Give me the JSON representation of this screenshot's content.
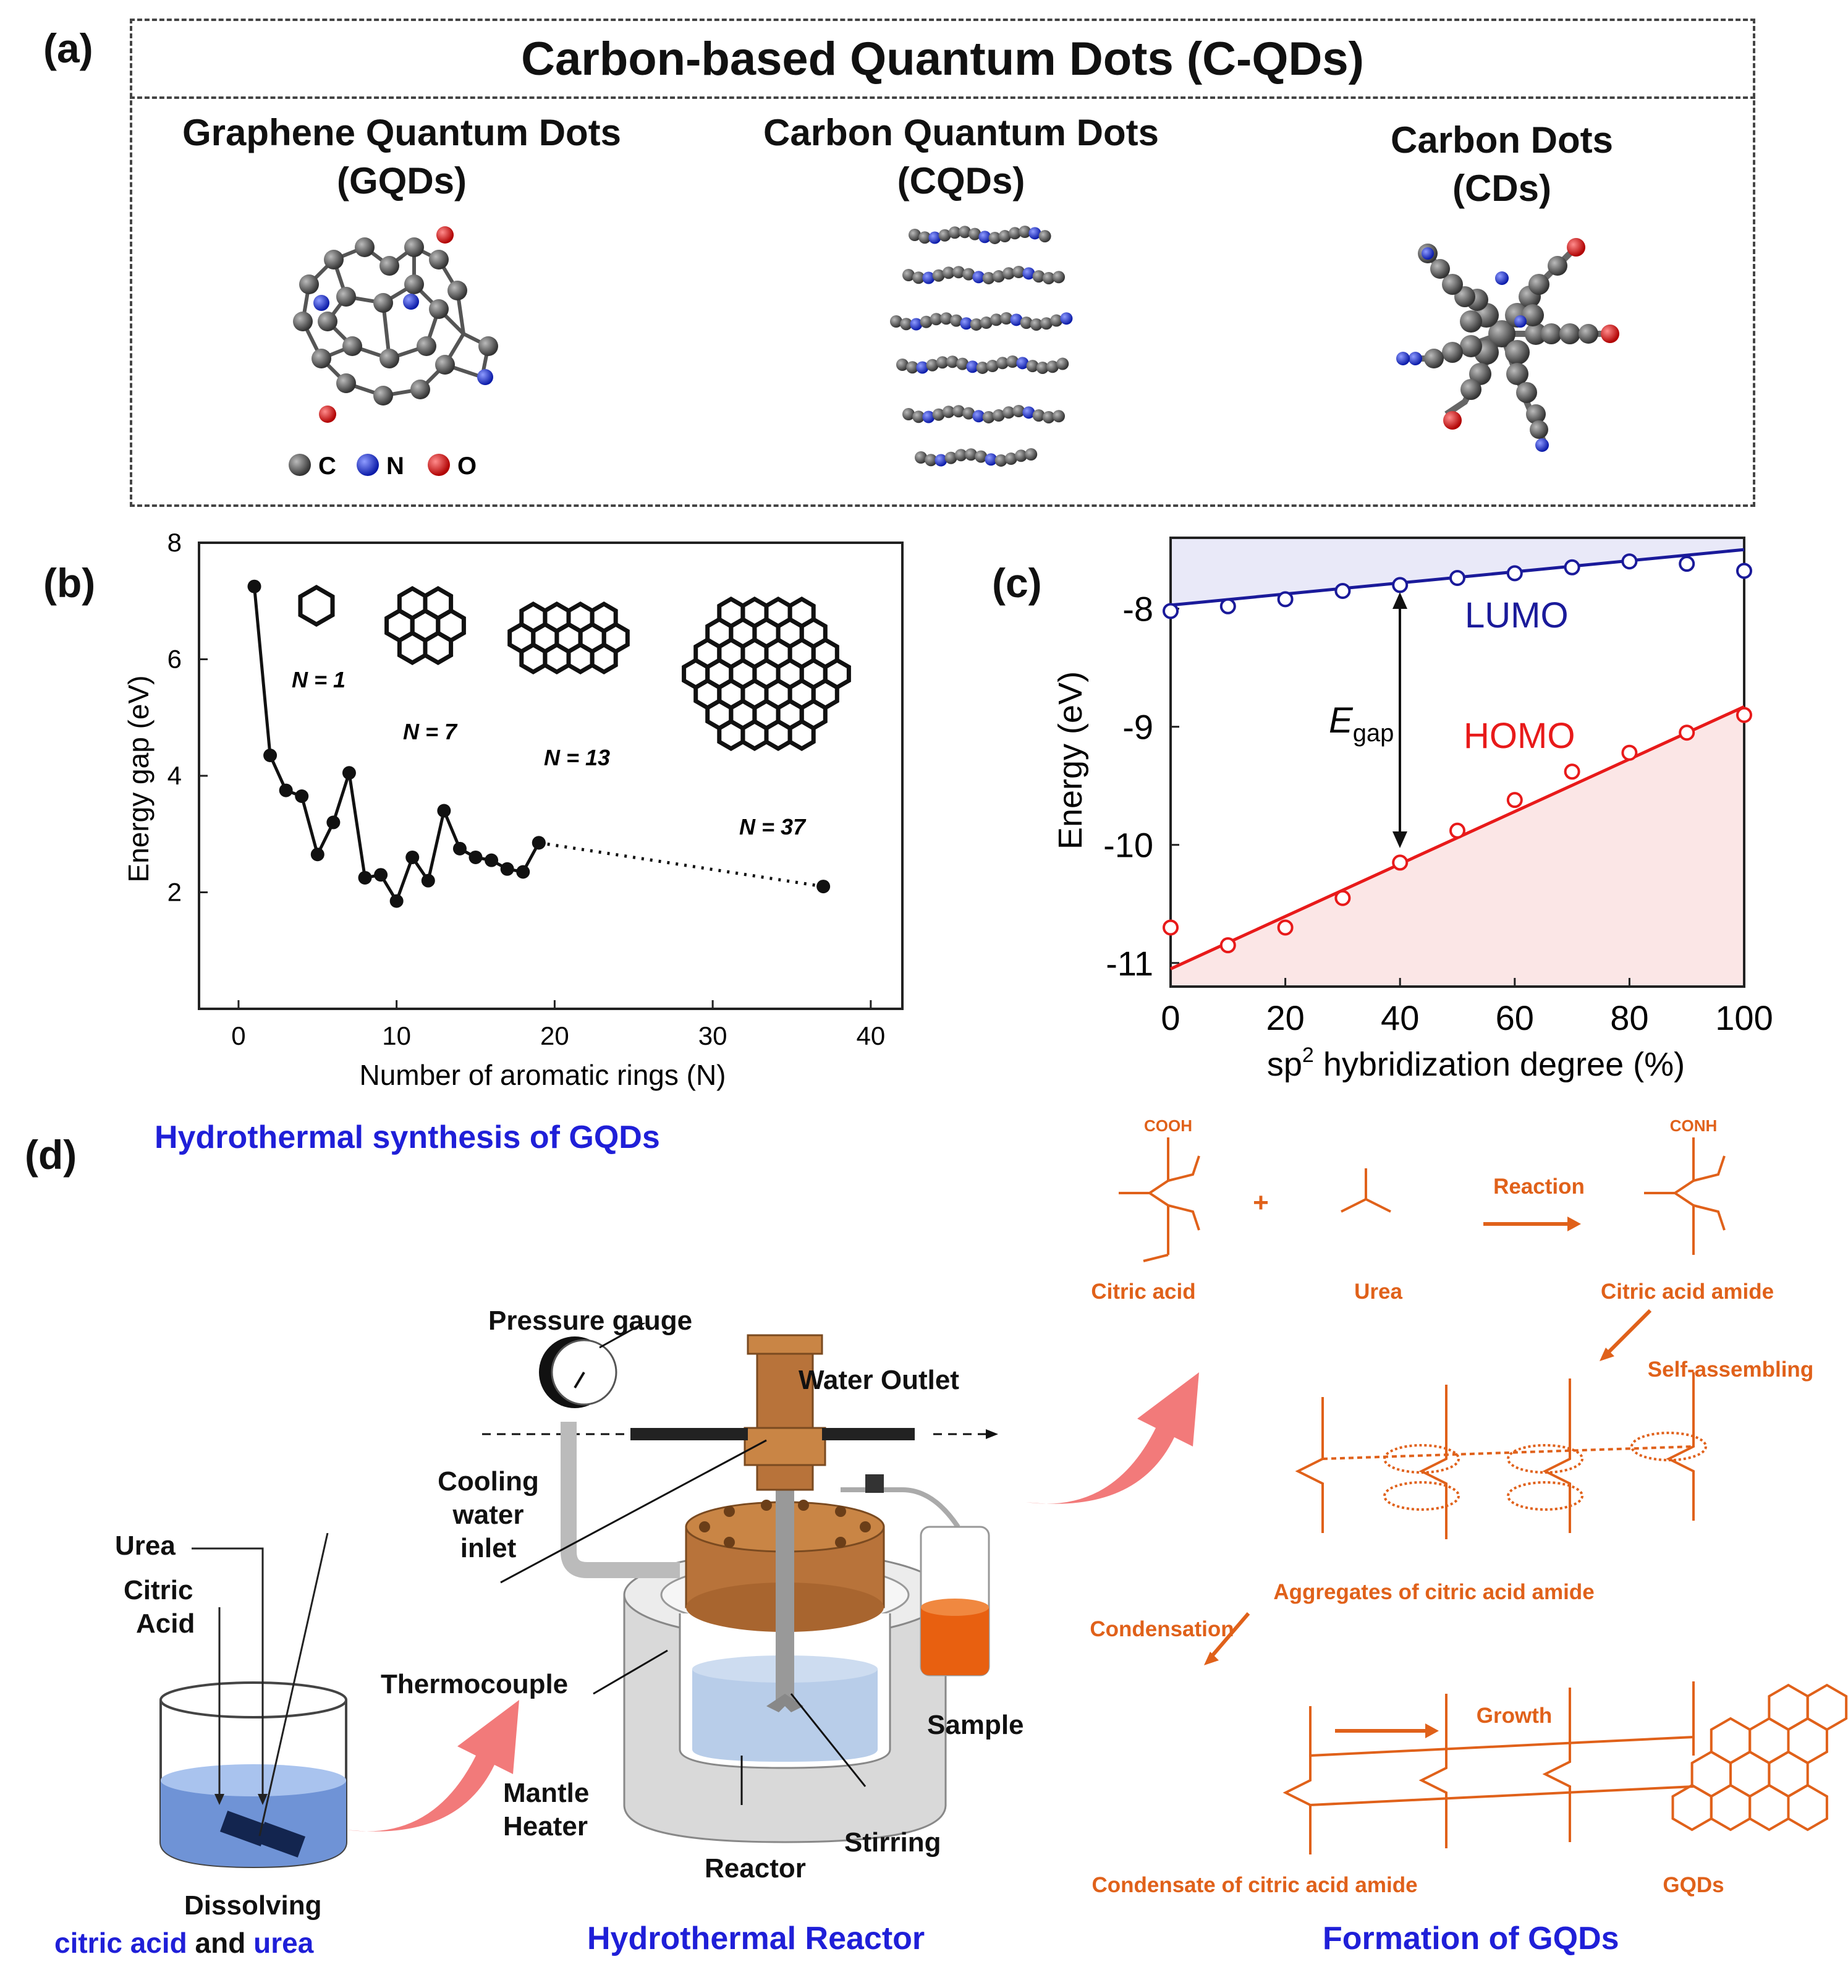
{
  "panel_a": {
    "label": "(a)",
    "title": "Carbon-based Quantum Dots (C-QDs)",
    "items": [
      {
        "name_line1": "Graphene Quantum Dots",
        "name_line2": "(GQDs)"
      },
      {
        "name_line1": "Carbon Quantum Dots",
        "name_line2": "(CQDs)"
      },
      {
        "name_line1": "Carbon Dots",
        "name_line2": "(CDs)"
      }
    ],
    "legend": [
      {
        "symbol": "C",
        "color": "#555555"
      },
      {
        "symbol": "N",
        "color": "#1c2fd6"
      },
      {
        "symbol": "O",
        "color": "#e01010"
      }
    ]
  },
  "panel_b": {
    "label": "(b)",
    "ring_labels": [
      "N = 1",
      "N = 7",
      "N = 13",
      "N = 37"
    ]
  },
  "panel_c": {
    "label": "(c)",
    "lumo_label": "LUMO",
    "homo_label": "HOMO",
    "gap_label_main": "E",
    "gap_label_sub": "gap",
    "colors": {
      "lumo": "#1a1a9a",
      "homo": "#e81a1a",
      "lumo_fill": "#e9e9f8",
      "homo_fill": "#fbe6e6"
    }
  },
  "panel_d": {
    "label": "(d)",
    "title": "Hydrothermal synthesis of GQDs",
    "beaker_labels": {
      "urea": "Urea",
      "citric_line1": "Citric",
      "citric_line2": "Acid"
    },
    "dissolving": {
      "line1": "Dissolving",
      "part1": "citric acid",
      "part2": " and ",
      "part3": "urea"
    },
    "reactor_labels": {
      "pressure_gauge": "Pressure gauge",
      "water_outlet": "Water Outlet",
      "cooling_line1": "Cooling",
      "cooling_line2": "water",
      "cooling_line3": "inlet",
      "thermocouple": "Thermocouple",
      "mantle_line1": "Mantle",
      "mantle_line2": "Heater",
      "reactor": "Reactor",
      "stirring": "Stirring",
      "sample": "Sample"
    },
    "reactor_caption": "Hydrothermal Reactor",
    "formation_caption": "Formation of GQDs",
    "chem": {
      "citric_acid": "Citric acid",
      "urea": "Urea",
      "reaction": "Reaction",
      "citric_acid_amide": "Citric acid amide",
      "self_assembling": "Self-assembling",
      "aggregates": "Aggregates of citric acid amide",
      "condensation": "Condensation",
      "condensate": "Condensate of  citric acid amide",
      "growth": "Growth",
      "gqds": "GQDs",
      "plus": "+"
    }
  },
  "chart_data": [
    {
      "type": "line",
      "title": "",
      "xlabel": "Number of aromatic rings (N)",
      "ylabel": "Energy gap (eV)",
      "xlim": [
        -2.5,
        42
      ],
      "ylim": [
        0,
        8
      ],
      "xticks": [
        0,
        10,
        20,
        30,
        40
      ],
      "yticks": [
        2,
        4,
        6,
        8
      ],
      "series": [
        {
          "name": "solid",
          "style": "solid",
          "x": [
            1,
            2,
            3,
            4,
            5,
            6,
            7,
            8,
            9,
            10,
            11,
            12,
            13,
            14,
            15,
            16,
            17,
            18,
            19
          ],
          "y": [
            7.25,
            4.35,
            3.75,
            3.65,
            2.65,
            3.2,
            4.05,
            2.25,
            2.3,
            1.85,
            2.6,
            2.2,
            3.4,
            2.75,
            2.6,
            2.55,
            2.4,
            2.35,
            2.85
          ]
        },
        {
          "name": "dotted",
          "style": "dotted",
          "x": [
            19,
            37
          ],
          "y": [
            2.85,
            2.1
          ]
        }
      ]
    },
    {
      "type": "line",
      "title": "",
      "xlabel": "sp2 hybridization degree (%)",
      "ylabel": "Energy (eV)",
      "xlim": [
        0,
        100
      ],
      "ylim": [
        -11.2,
        -7.4
      ],
      "xticks": [
        0,
        20,
        40,
        60,
        80,
        100
      ],
      "yticks": [
        -11,
        -10,
        -9,
        -8
      ],
      "series": [
        {
          "name": "LUMO",
          "fit": [
            [
              0,
              -7.97
            ],
            [
              100,
              -7.5
            ]
          ],
          "x": [
            0,
            10,
            20,
            30,
            40,
            50,
            60,
            70,
            80,
            90,
            100
          ],
          "y": [
            -8.02,
            -7.98,
            -7.92,
            -7.85,
            -7.8,
            -7.74,
            -7.7,
            -7.65,
            -7.6,
            -7.62,
            -7.68
          ]
        },
        {
          "name": "HOMO",
          "fit": [
            [
              0,
              -11.05
            ],
            [
              100,
              -8.83
            ]
          ],
          "x": [
            0,
            10,
            20,
            30,
            40,
            50,
            60,
            70,
            80,
            90,
            100
          ],
          "y": [
            -10.7,
            -10.85,
            -10.7,
            -10.45,
            -10.15,
            -9.88,
            -9.62,
            -9.38,
            -9.22,
            -9.05,
            -8.9
          ]
        }
      ]
    }
  ]
}
